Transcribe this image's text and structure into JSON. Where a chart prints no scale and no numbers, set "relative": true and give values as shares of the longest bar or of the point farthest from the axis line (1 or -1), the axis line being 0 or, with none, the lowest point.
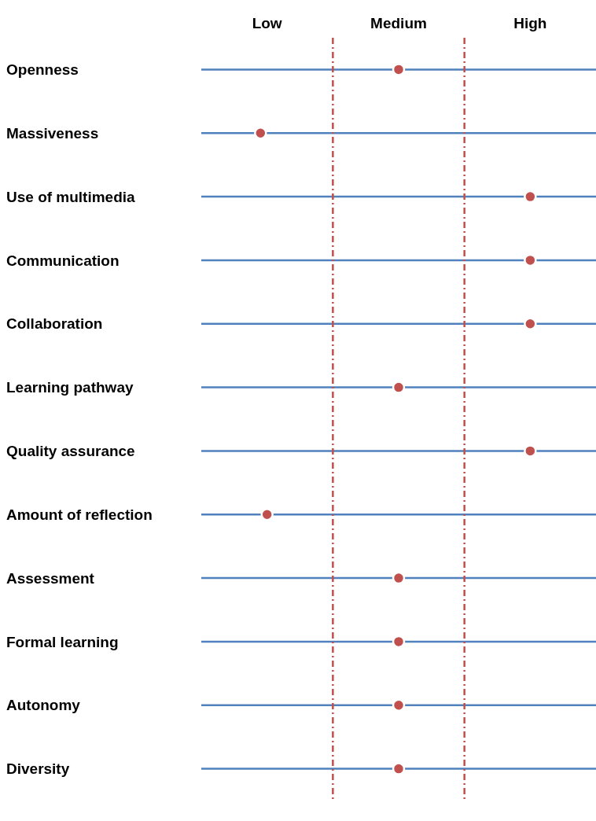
{
  "chart_data": {
    "type": "scatter",
    "categories": [
      "Openness",
      "Massiveness",
      "Use of multimedia",
      "Communication",
      "Collaboration",
      "Learning pathway",
      "Quality assurance",
      "Amount of reflection",
      "Assessment",
      "Formal learning",
      "Autonomy",
      "Diversity"
    ],
    "orientation": "horizontal",
    "relative": true,
    "values": [
      0.6,
      0.18,
      1,
      1,
      1,
      0.6,
      1,
      0.2,
      0.6,
      0.6,
      0.6,
      0.6
    ],
    "color": "#c0504d",
    "marker": "circle",
    "grid": "y",
    "annotations": [
      "Low",
      "Medium",
      "High"
    ],
    "ref_lines": [
      {
        "axis": "x",
        "value": 0.4,
        "label": null,
        "color": "#c0504d",
        "line_style": "dashed"
      },
      {
        "axis": "x",
        "value": 0.8,
        "label": null,
        "color": "#c0504d",
        "line_style": "dashed"
      }
    ]
  }
}
